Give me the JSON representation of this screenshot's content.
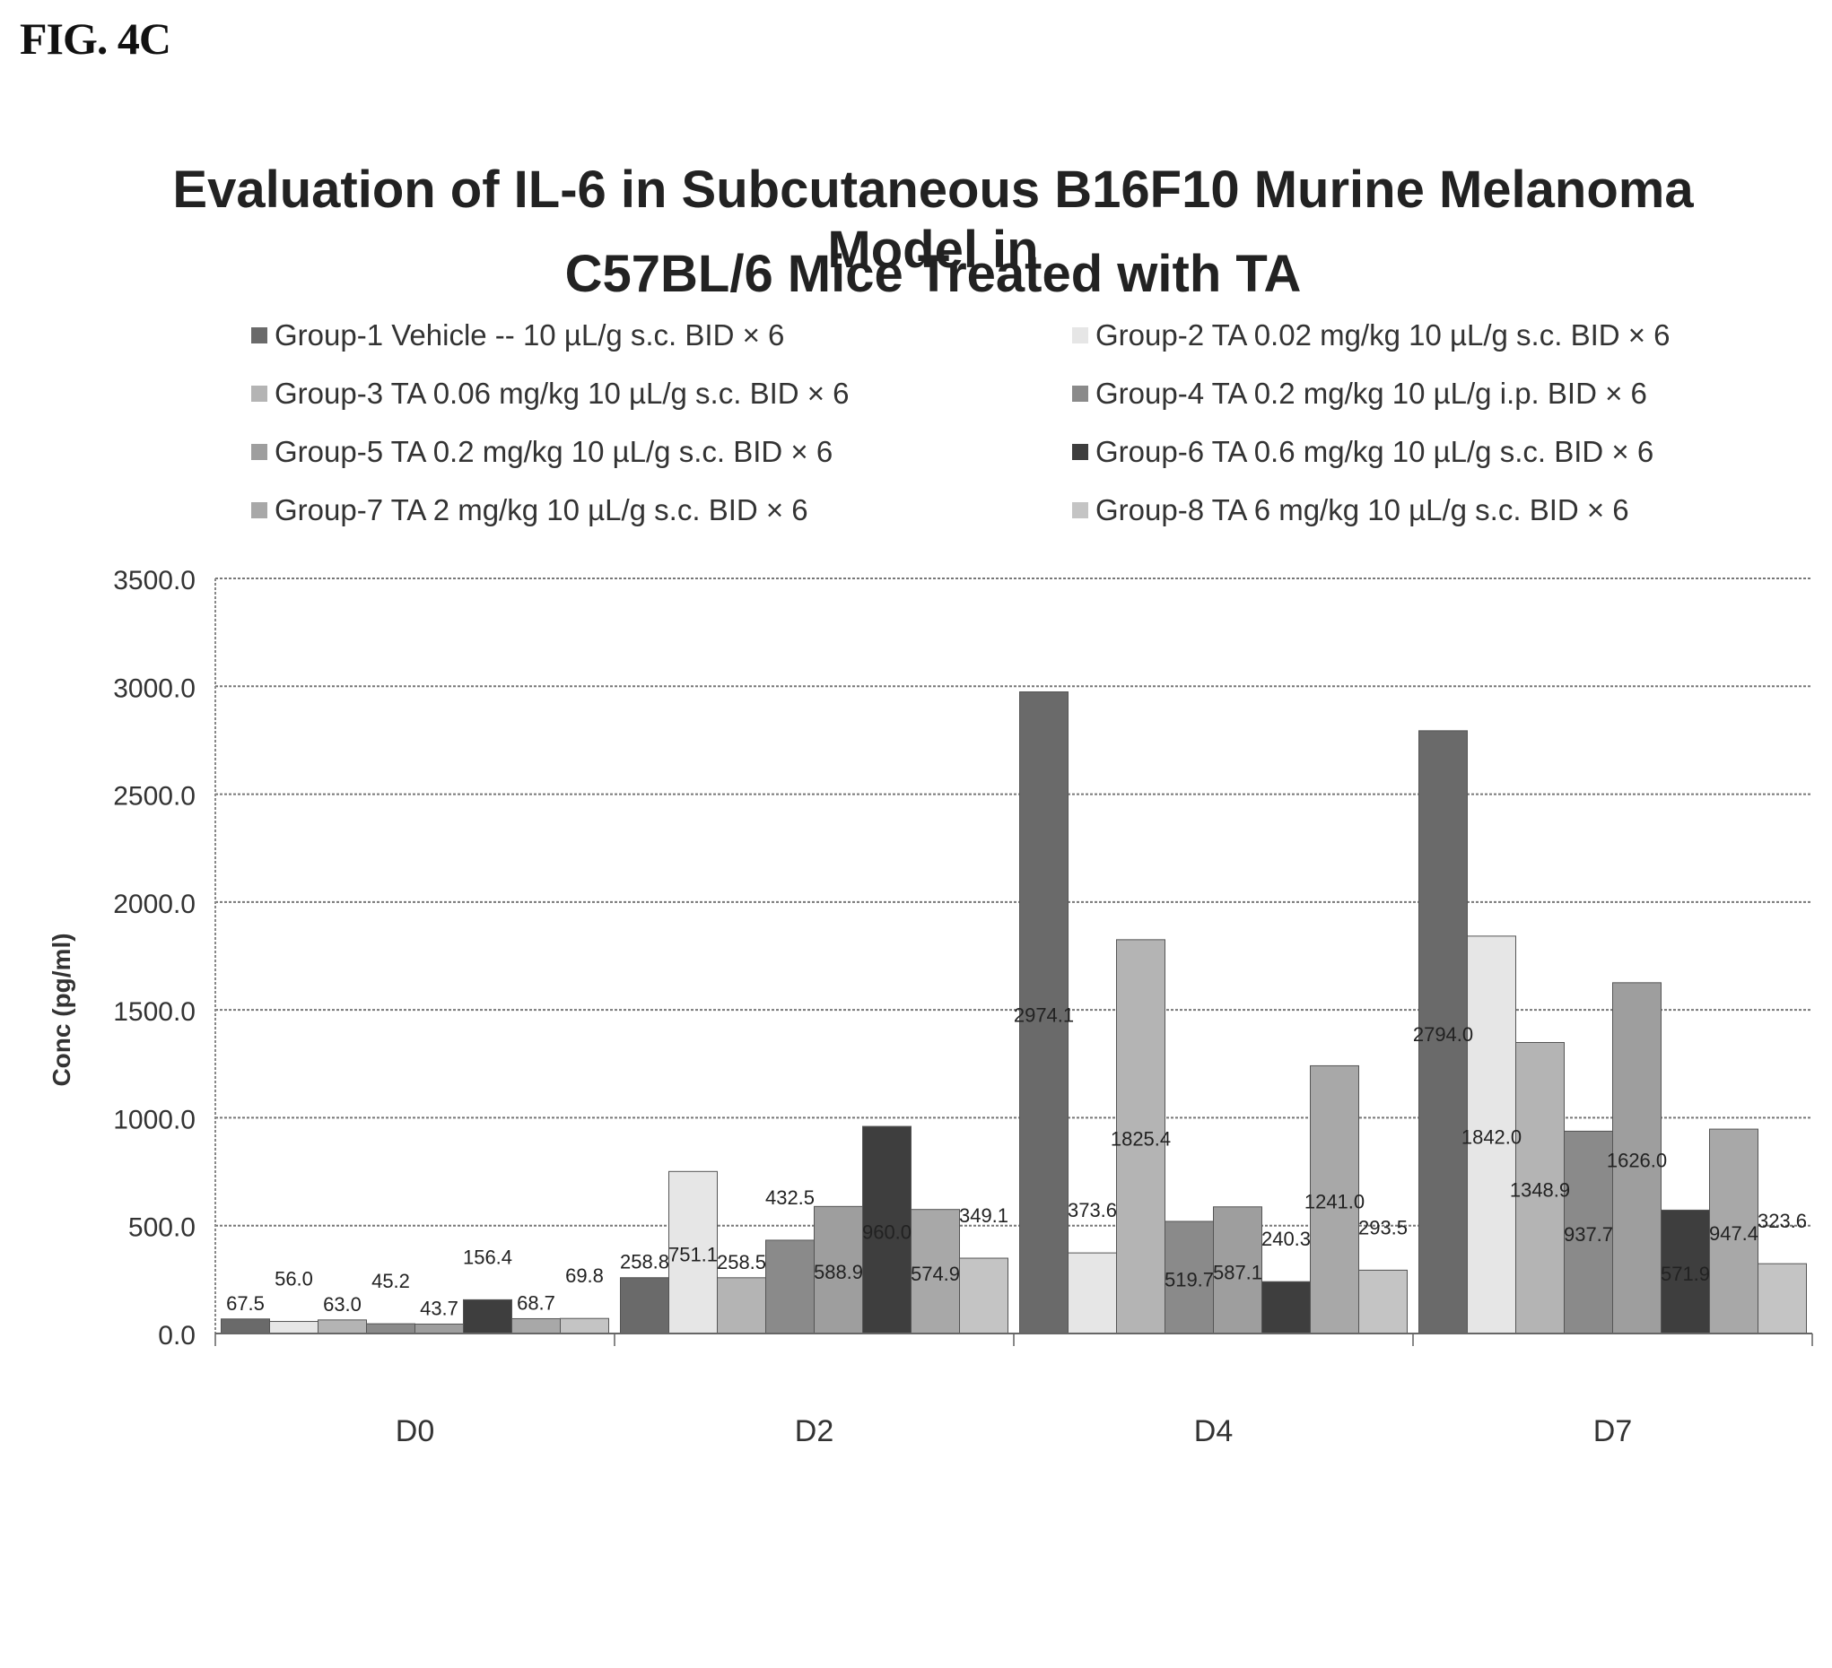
{
  "figure_label": "FIG. 4C",
  "chart_data": {
    "type": "bar",
    "title_lines": [
      "Evaluation of IL-6 in Subcutaneous B16F10 Murine Melanoma Model in",
      "C57BL/6 Mice Treated with TA"
    ],
    "xlabel": "",
    "ylabel": "Conc (pg/ml)",
    "ylim": [
      0,
      3500
    ],
    "yticks": [
      "0.0",
      "500.0",
      "1000.0",
      "1500.0",
      "2000.0",
      "2500.0",
      "3000.0",
      "3500.0"
    ],
    "categories": [
      "D0",
      "D2",
      "D4",
      "D7"
    ],
    "grid": true,
    "legend_position": "top",
    "series": [
      {
        "name": "Group-1 Vehicle -- 10 µL/g s.c. BID × 6",
        "color": "#6a6a6a",
        "values": [
          67.5,
          258.8,
          2974.1,
          2794.0
        ],
        "labels": [
          "67.5",
          "258.8",
          "2974.1",
          "2794.0"
        ]
      },
      {
        "name": "Group-2 TA 0.02 mg/kg 10 µL/g s.c. BID × 6",
        "color": "#e6e6e6",
        "values": [
          56.0,
          751.1,
          373.6,
          1842.0
        ],
        "labels": [
          "56.0",
          "751.1",
          "373.6",
          "1842.0"
        ]
      },
      {
        "name": "Group-3 TA 0.06 mg/kg 10 µL/g s.c. BID × 6",
        "color": "#b4b4b4",
        "values": [
          63.0,
          258.5,
          1825.4,
          1348.9
        ],
        "labels": [
          "63.0",
          "258.5",
          "1825.4",
          "1348.9"
        ]
      },
      {
        "name": "Group-4 TA 0.2 mg/kg 10 µL/g i.p. BID × 6",
        "color": "#8a8a8a",
        "values": [
          45.2,
          432.5,
          519.7,
          937.7
        ],
        "labels": [
          "45.2",
          "432.5",
          "519.7",
          "937.7"
        ]
      },
      {
        "name": "Group-5 TA 0.2 mg/kg 10 µL/g s.c. BID × 6",
        "color": "#9e9e9e",
        "values": [
          43.7,
          588.9,
          587.1,
          1626.0
        ],
        "labels": [
          "43.7",
          "588.9",
          "587.1",
          "1626.0"
        ]
      },
      {
        "name": "Group-6 TA 0.6 mg/kg 10 µL/g s.c. BID × 6",
        "color": "#3e3e3e",
        "values": [
          156.4,
          960.0,
          240.3,
          571.9
        ],
        "labels": [
          "156.4",
          "960.0",
          "240.3",
          "571.9"
        ]
      },
      {
        "name": "Group-7 TA 2 mg/kg 10 µL/g s.c. BID × 6",
        "color": "#a8a8a8",
        "values": [
          68.7,
          574.9,
          1241.0,
          947.4
        ],
        "labels": [
          "68.7",
          "574.9",
          "1241.0",
          "947.4"
        ]
      },
      {
        "name": "Group-8 TA 6 mg/kg 10 µL/g s.c. BID × 6",
        "color": "#c4c4c4",
        "values": [
          69.8,
          349.1,
          293.5,
          323.6
        ],
        "labels": [
          "69.8",
          "349.1",
          "293.5",
          "323.6"
        ]
      }
    ]
  }
}
